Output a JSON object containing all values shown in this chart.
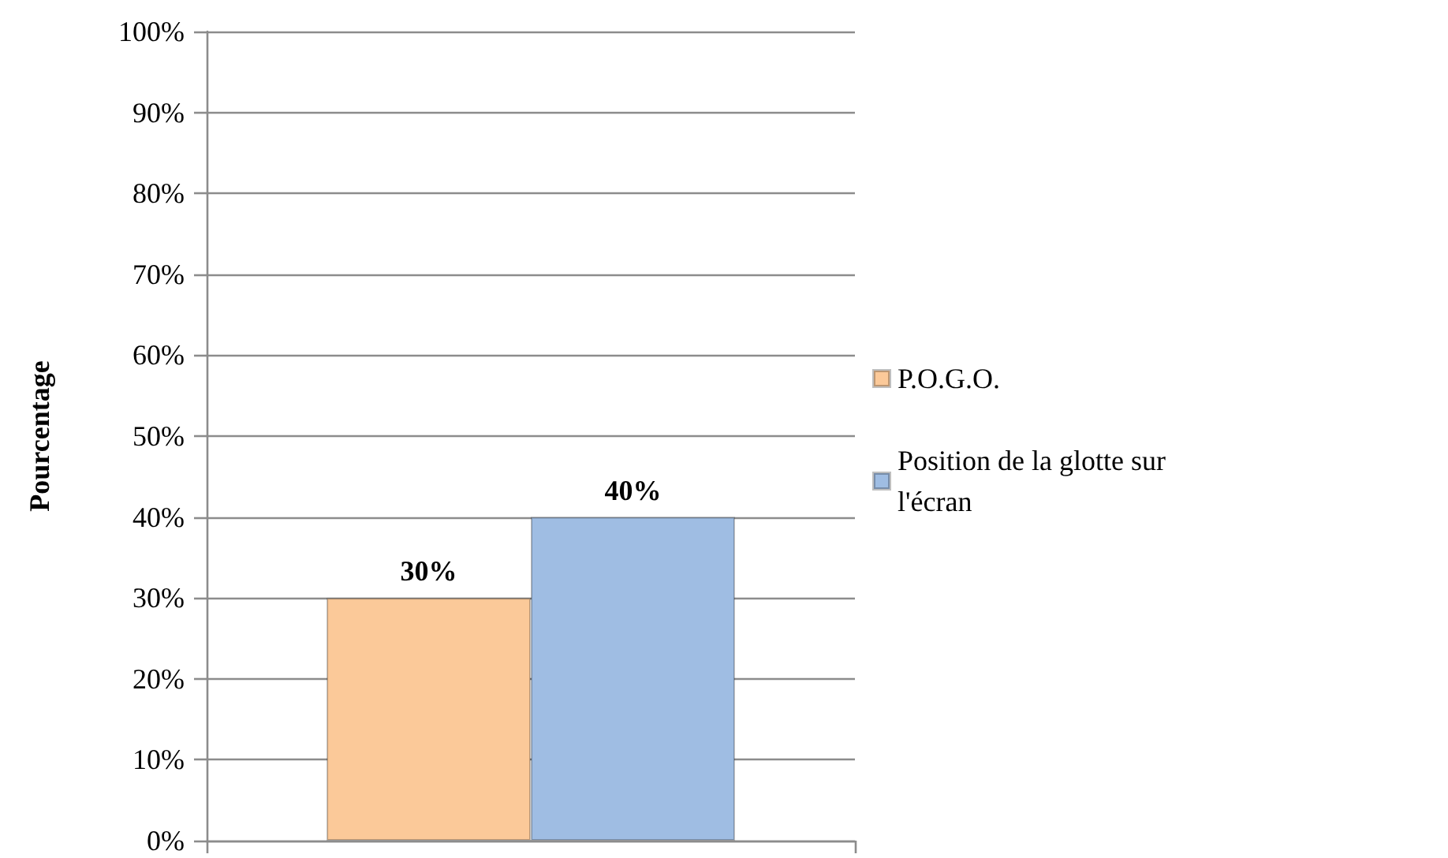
{
  "chart_data": {
    "type": "bar",
    "ylabel": "Pourcentage",
    "categories": [
      null
    ],
    "series": [
      {
        "name": "P.O.G.O.",
        "color": "#fbc999",
        "values": [
          30
        ],
        "value_labels": [
          "30%"
        ]
      },
      {
        "name": "Position de la glotte sur l'écran",
        "color": "#9fbde3",
        "values": [
          40
        ],
        "value_labels": [
          "40%"
        ]
      }
    ],
    "ylim": [
      0,
      100
    ],
    "yticks": [
      {
        "value": 0,
        "label": "0%"
      },
      {
        "value": 10,
        "label": "10%"
      },
      {
        "value": 20,
        "label": "20%"
      },
      {
        "value": 30,
        "label": "30%"
      },
      {
        "value": 40,
        "label": "40%"
      },
      {
        "value": 50,
        "label": "50%"
      },
      {
        "value": 60,
        "label": "60%"
      },
      {
        "value": 70,
        "label": "70%"
      },
      {
        "value": 80,
        "label": "80%"
      },
      {
        "value": 90,
        "label": "90%"
      },
      {
        "value": 100,
        "label": "100%"
      }
    ],
    "grid": "y",
    "legend": "right"
  }
}
